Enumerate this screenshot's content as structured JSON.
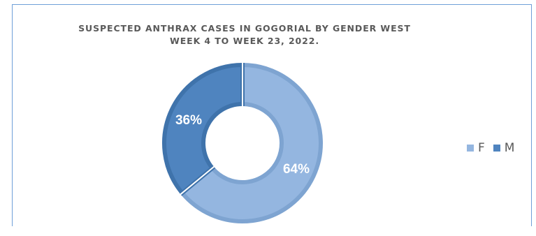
{
  "chart_data": {
    "type": "pie",
    "style": "donut",
    "title_lines": [
      "SUSPECTED ANTHRAX CASES IN GOGORIAL BY GENDER WEST",
      "WEEK 4 TO WEEK 23, 2022."
    ],
    "categories": [
      "F",
      "M"
    ],
    "values": [
      64,
      36
    ],
    "labels": [
      "64%",
      "36%"
    ],
    "colors": [
      "#94b6e0",
      "#4f84bf"
    ],
    "legend_position": "right"
  }
}
